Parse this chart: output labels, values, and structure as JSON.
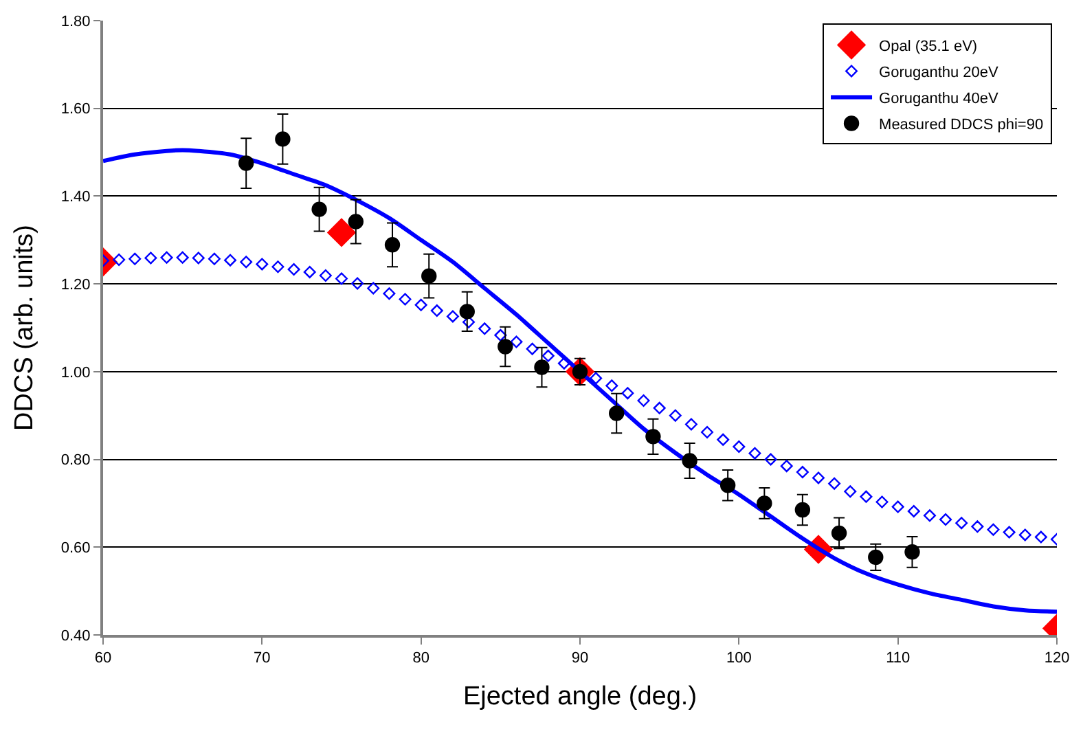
{
  "chart_data": {
    "type": "scatter",
    "xlabel": "Ejected angle (deg.)",
    "ylabel": "DDCS (arb. units)",
    "xlim": [
      60,
      120
    ],
    "xticks": [
      60,
      70,
      80,
      90,
      100,
      110,
      120
    ],
    "ylim": [
      0.4,
      1.8
    ],
    "yticks": [
      {
        "value": 0.4,
        "label": "0.40"
      },
      {
        "value": 0.6,
        "label": "0.60"
      },
      {
        "value": 0.8,
        "label": "0.80"
      },
      {
        "value": 1.0,
        "label": "1.00"
      },
      {
        "value": 1.2,
        "label": "1.20"
      },
      {
        "value": 1.4,
        "label": "1.40"
      },
      {
        "value": 1.6,
        "label": "1.60"
      },
      {
        "value": 1.8,
        "label": "1.80"
      }
    ],
    "grid": "y",
    "legend": "top right",
    "series": [
      {
        "name": "Opal (35.1 eV)",
        "marker": "diamond",
        "color": "#ff0000",
        "x": [
          60,
          75,
          90,
          105,
          120
        ],
        "values": [
          1.25,
          1.317,
          1.0,
          0.595,
          0.415
        ]
      },
      {
        "name": "Goruganthu 20eV",
        "marker": "diamond-open",
        "color": "#0000ff",
        "x": [
          60,
          61,
          62,
          63,
          64,
          65,
          66,
          67,
          68,
          69,
          70,
          71,
          72,
          73,
          74,
          75,
          76,
          77,
          78,
          79,
          80,
          81,
          82,
          83,
          84,
          85,
          86,
          87,
          88,
          89,
          90,
          91,
          92,
          93,
          94,
          95,
          96,
          97,
          98,
          99,
          100,
          101,
          102,
          103,
          104,
          105,
          106,
          107,
          108,
          109,
          110,
          111,
          112,
          113,
          114,
          115,
          116,
          117,
          118,
          119,
          120
        ],
        "values": [
          1.253,
          1.255,
          1.257,
          1.259,
          1.26,
          1.26,
          1.259,
          1.257,
          1.254,
          1.25,
          1.245,
          1.239,
          1.233,
          1.227,
          1.219,
          1.212,
          1.201,
          1.19,
          1.178,
          1.165,
          1.152,
          1.139,
          1.126,
          1.113,
          1.098,
          1.083,
          1.068,
          1.052,
          1.036,
          1.019,
          null,
          0.985,
          0.968,
          0.951,
          0.934,
          0.917,
          0.9,
          0.88,
          0.862,
          0.845,
          0.829,
          0.814,
          0.8,
          0.785,
          0.771,
          0.758,
          0.745,
          0.727,
          0.715,
          0.703,
          0.692,
          0.682,
          0.672,
          0.663,
          0.655,
          0.647,
          0.64,
          0.634,
          0.628,
          0.623,
          0.618
        ]
      },
      {
        "name": "Goruganthu 40eV",
        "type": "line",
        "marker": "none",
        "line_style": "solid",
        "color": "#0000ff",
        "x": [
          60,
          62,
          64,
          65,
          66,
          68,
          70,
          72,
          74,
          76,
          78,
          80,
          82,
          84,
          86,
          88,
          90,
          92,
          94,
          96,
          98,
          100,
          102,
          104,
          106,
          108,
          110,
          112,
          114,
          116,
          118,
          120
        ],
        "values": [
          1.48,
          1.495,
          1.503,
          1.505,
          1.503,
          1.495,
          1.475,
          1.45,
          1.425,
          1.39,
          1.35,
          1.3,
          1.25,
          1.19,
          1.13,
          1.065,
          1.0,
          0.935,
          0.87,
          0.815,
          0.765,
          0.72,
          0.67,
          0.62,
          0.575,
          0.54,
          0.515,
          0.495,
          0.48,
          0.465,
          0.456,
          0.453
        ]
      },
      {
        "name": "Measured DDCS phi=90",
        "marker": "circle",
        "color": "#000000",
        "x": [
          69.0,
          71.3,
          73.6,
          75.9,
          78.2,
          80.5,
          82.9,
          85.3,
          87.6,
          90.0,
          92.3,
          94.6,
          96.9,
          99.3,
          101.6,
          104.0,
          106.3,
          108.6,
          110.9
        ],
        "values": [
          1.475,
          1.53,
          1.37,
          1.342,
          1.289,
          1.218,
          1.137,
          1.057,
          1.01,
          1.0,
          0.905,
          0.852,
          0.797,
          0.741,
          0.7,
          0.685,
          0.632,
          0.577,
          0.589
        ],
        "errors": [
          0.057,
          0.057,
          0.05,
          0.05,
          0.05,
          0.05,
          0.045,
          0.045,
          0.045,
          0.03,
          0.045,
          0.04,
          0.04,
          0.035,
          0.035,
          0.035,
          0.035,
          0.03,
          0.035
        ]
      }
    ]
  }
}
